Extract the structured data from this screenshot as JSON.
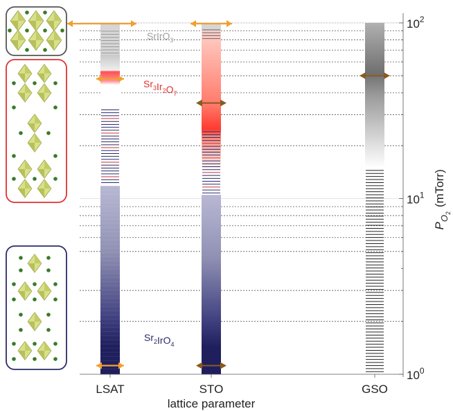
{
  "chart_data": {
    "type": "bar",
    "categories": [
      "LSAT",
      "STO",
      "GSO"
    ],
    "xlabel": "lattice parameter",
    "ylabel": {
      "main": "P",
      "sub": "O",
      "sub2": "2",
      "unit": "(mTorr)"
    },
    "yscale": "log",
    "ylim": [
      1,
      100
    ],
    "y_ticks": [
      {
        "value": 100,
        "base": "10",
        "exp": "2"
      },
      {
        "value": 10,
        "base": "10",
        "exp": "1"
      },
      {
        "value": 1,
        "base": "10",
        "exp": "0"
      }
    ],
    "grid": "dotted horizontal lines at sampled pressures",
    "sampled_pressures": [
      100,
      90,
      80,
      70,
      60,
      50,
      40,
      30,
      20,
      9,
      8,
      7,
      6,
      5,
      3,
      2
    ],
    "phase_labels": [
      {
        "id": "srio3",
        "text": "SrIrO",
        "sub": "3",
        "pressure": 93,
        "column": "LSAT",
        "color": "#a0a0a0"
      },
      {
        "id": "sr3ir2o7",
        "text": "Sr",
        "parts": [
          [
            "Sr",
            "3"
          ],
          [
            "Ir",
            "2"
          ],
          [
            "O",
            "7"
          ]
        ],
        "pressure": 46,
        "column": "LSAT",
        "color": "#e03030"
      },
      {
        "id": "sr2iro4",
        "text": "Sr",
        "parts": [
          [
            "Sr",
            "2"
          ],
          [
            "IrO",
            "4"
          ]
        ],
        "pressure": 1.55,
        "column": "LSAT",
        "color": "#2a2a6a"
      }
    ],
    "columns": [
      {
        "name": "LSAT",
        "phases": [
          {
            "phase": "SrIrO3",
            "from": 100,
            "to": 66,
            "color": "#c0c0c0"
          },
          {
            "phase": "Sr3Ir2O7",
            "from": 66,
            "to": 11.8,
            "color": "#e03030"
          },
          {
            "phase": "Sr2IrO4",
            "from": 11.8,
            "to": 1,
            "color": "#1f1f5e"
          }
        ],
        "markers": [
          {
            "pressure": 99,
            "color": "#f0a030",
            "type": "range"
          },
          {
            "pressure": 48,
            "color": "#f0a030",
            "type": "range"
          },
          {
            "pressure": 1.12,
            "color": "#f0a030",
            "type": "range"
          }
        ]
      },
      {
        "name": "STO",
        "phases": [
          {
            "phase": "SrIrO3",
            "from": 100,
            "to": 90,
            "color": "#c0c0c0"
          },
          {
            "phase": "Sr3Ir2O7",
            "from": 90,
            "to": 10.5,
            "color": "#e03030"
          },
          {
            "phase": "Sr2IrO4",
            "from": 10.5,
            "to": 1,
            "color": "#1f1f5e"
          }
        ],
        "markers": [
          {
            "pressure": 99,
            "color": "#f0a030",
            "type": "range"
          },
          {
            "pressure": 35,
            "color": "#8a5a20",
            "type": "arrow"
          },
          {
            "pressure": 1.12,
            "color": "#8a5a20",
            "type": "arrow"
          }
        ]
      },
      {
        "name": "GSO",
        "phases": [
          {
            "phase": "SrIrO3",
            "from": 100,
            "to": 15,
            "color": "#888888"
          },
          {
            "phase": "none",
            "from": 15,
            "to": 1,
            "color": "#ffffff"
          }
        ],
        "markers": [
          {
            "pressure": 50,
            "color": "#8a5a20",
            "type": "arrow"
          }
        ]
      }
    ]
  }
}
